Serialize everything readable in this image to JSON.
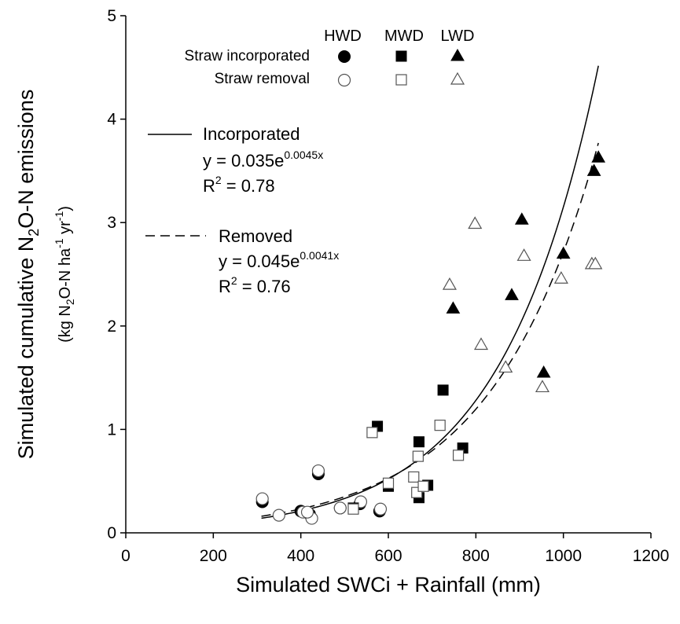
{
  "chart_data": {
    "type": "scatter",
    "xlabel": "Simulated SWCi + Rainfall (mm)",
    "ylabel": {
      "line1": {
        "a": "Simulated cumulative N",
        "sub": "2",
        "b": "O-N emissions"
      },
      "line2": {
        "a": "(kg N",
        "sub": "2",
        "b": "O-N ha",
        "sup1": "-1",
        "c": " yr",
        "sup2": "-1",
        "d": ")"
      }
    },
    "xlim": [
      0,
      1200
    ],
    "ylim": [
      0,
      5
    ],
    "xticks": [
      "0",
      "200",
      "400",
      "600",
      "800",
      "1000",
      "1200"
    ],
    "yticks": [
      "0",
      "1",
      "2",
      "3",
      "4",
      "5"
    ],
    "grid": false,
    "legend": {
      "columns": [
        "HWD",
        "MWD",
        "LWD"
      ],
      "rows": [
        "Straw incorporated",
        "Straw removal"
      ],
      "placement": "top"
    },
    "series": [
      {
        "name": "HWD Straw incorporated",
        "marker": "circle",
        "filled": true,
        "points": [
          [
            312,
            0.3
          ],
          [
            440,
            0.57
          ],
          [
            420,
            0.18
          ],
          [
            580,
            0.21
          ],
          [
            535,
            0.28
          ],
          [
            490,
            0.24
          ],
          [
            400,
            0.21
          ]
        ]
      },
      {
        "name": "HWD Straw removal",
        "marker": "circle",
        "filled": false,
        "points": [
          [
            312,
            0.33
          ],
          [
            350,
            0.17
          ],
          [
            405,
            0.2
          ],
          [
            425,
            0.14
          ],
          [
            440,
            0.6
          ],
          [
            490,
            0.24
          ],
          [
            537,
            0.3
          ],
          [
            582,
            0.23
          ],
          [
            415,
            0.2
          ]
        ]
      },
      {
        "name": "MWD Straw incorporated",
        "marker": "square",
        "filled": true,
        "points": [
          [
            575,
            1.03
          ],
          [
            670,
            0.88
          ],
          [
            725,
            1.38
          ],
          [
            770,
            0.82
          ],
          [
            690,
            0.46
          ],
          [
            670,
            0.34
          ],
          [
            520,
            0.24
          ],
          [
            600,
            0.45
          ]
        ]
      },
      {
        "name": "MWD Straw removal",
        "marker": "square",
        "filled": false,
        "points": [
          [
            563,
            0.97
          ],
          [
            600,
            0.48
          ],
          [
            520,
            0.23
          ],
          [
            658,
            0.54
          ],
          [
            665,
            0.39
          ],
          [
            668,
            0.74
          ],
          [
            680,
            0.45
          ],
          [
            718,
            1.04
          ],
          [
            760,
            0.75
          ]
        ]
      },
      {
        "name": "LWD Straw incorporated",
        "marker": "triangle",
        "filled": true,
        "points": [
          [
            748,
            2.17
          ],
          [
            882,
            2.3
          ],
          [
            905,
            3.03
          ],
          [
            955,
            1.55
          ],
          [
            1000,
            2.7
          ],
          [
            1070,
            3.5
          ],
          [
            1080,
            3.63
          ]
        ]
      },
      {
        "name": "LWD Straw removal",
        "marker": "triangle",
        "filled": false,
        "points": [
          [
            740,
            2.4
          ],
          [
            798,
            2.99
          ],
          [
            812,
            1.82
          ],
          [
            868,
            1.6
          ],
          [
            910,
            2.68
          ],
          [
            952,
            1.41
          ],
          [
            995,
            2.46
          ],
          [
            1065,
            2.6
          ],
          [
            1073,
            2.6
          ]
        ]
      }
    ],
    "fits": [
      {
        "name": "Incorporated",
        "style": "solid",
        "a": 0.035,
        "b": 0.0045,
        "x_range": [
          310,
          1080
        ],
        "eq_prefix": "y = 0.035e",
        "eq_exp": "0.0045x",
        "r2_prefix": "R",
        "r2_sup": "2",
        "r2_value": " = 0.78"
      },
      {
        "name": "Removed",
        "style": "dashed",
        "a": 0.045,
        "b": 0.0041,
        "x_range": [
          310,
          1080
        ],
        "eq_prefix": "y = 0.045e",
        "eq_exp": "0.0041x",
        "r2_prefix": "R",
        "r2_sup": "2",
        "r2_value": " = 0.76"
      }
    ]
  }
}
